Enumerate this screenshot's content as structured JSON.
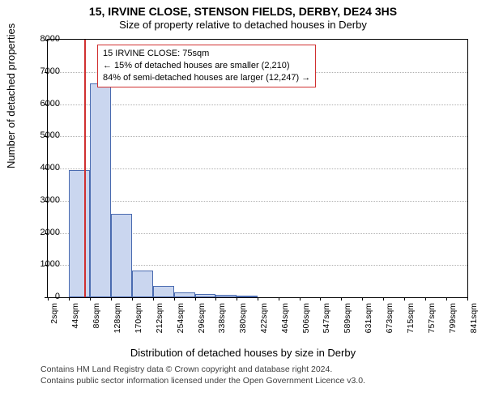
{
  "chart": {
    "type": "bar",
    "title": "15, IRVINE CLOSE, STENSON FIELDS, DERBY, DE24 3HS",
    "subtitle": "Size of property relative to detached houses in Derby",
    "x_axis_label": "Distribution of detached houses by size in Derby",
    "y_axis_label": "Number of detached properties",
    "background_color": "#ffffff",
    "bar_fill": "#cad6ef",
    "bar_border": "#4a6bb0",
    "grid_color": "#b0b0b0",
    "ref_line_color": "#d03030",
    "title_fontsize": 14,
    "subtitle_fontsize": 13,
    "label_fontsize": 13,
    "tick_fontsize": 11,
    "ylim": [
      0,
      8000
    ],
    "ytick_step": 1000,
    "x_categories": [
      "2sqm",
      "44sqm",
      "86sqm",
      "128sqm",
      "170sqm",
      "212sqm",
      "254sqm",
      "296sqm",
      "338sqm",
      "380sqm",
      "422sqm",
      "464sqm",
      "506sqm",
      "547sqm",
      "589sqm",
      "631sqm",
      "673sqm",
      "715sqm",
      "757sqm",
      "799sqm",
      "841sqm"
    ],
    "bars": [
      {
        "x_val": 44,
        "y": 3950
      },
      {
        "x_val": 86,
        "y": 6650
      },
      {
        "x_val": 128,
        "y": 2580
      },
      {
        "x_val": 170,
        "y": 820
      },
      {
        "x_val": 212,
        "y": 360
      },
      {
        "x_val": 254,
        "y": 150
      },
      {
        "x_val": 296,
        "y": 90
      },
      {
        "x_val": 338,
        "y": 65
      },
      {
        "x_val": 380,
        "y": 60
      }
    ],
    "bar_x_start": 2,
    "bar_x_end": 841,
    "bar_width_units": 42,
    "ref_line_x": 75,
    "annotation": {
      "line1": "15 IRVINE CLOSE: 75sqm",
      "line2": "← 15% of detached houses are smaller (2,210)",
      "line3": "84% of semi-detached houses are larger (12,247) →",
      "border_color": "#d03030"
    },
    "footer": {
      "line1": "Contains HM Land Registry data © Crown copyright and database right 2024.",
      "line2": "Contains public sector information licensed under the Open Government Licence v3.0."
    }
  }
}
